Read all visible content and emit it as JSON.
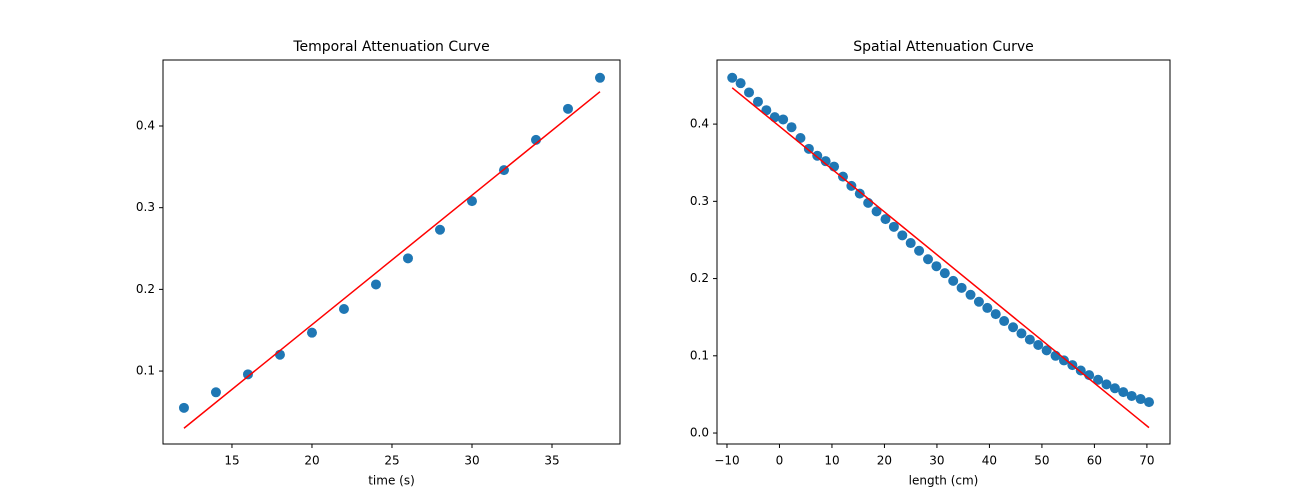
{
  "chart_data": [
    {
      "type": "scatter",
      "title": "Temporal Attenuation Curve",
      "xlabel": "time (s)",
      "xlim": [
        10.69,
        39.25
      ],
      "ylim": [
        0.0107,
        0.4808
      ],
      "xticks": [
        15,
        20,
        25,
        30,
        35
      ],
      "yticks": [
        0.1,
        0.2,
        0.3,
        0.4
      ],
      "series": [
        {
          "type": "scatter",
          "color": "#1f77b4",
          "x": [
            12,
            14,
            16,
            18,
            20,
            22,
            24,
            26,
            28,
            30,
            32,
            34,
            36,
            38
          ],
          "values": [
            0.055,
            0.074,
            0.096,
            0.12,
            0.147,
            0.176,
            0.206,
            0.238,
            0.273,
            0.308,
            0.346,
            0.383,
            0.421,
            0.459
          ]
        },
        {
          "type": "line",
          "color": "#ff0000",
          "x": [
            12,
            38
          ],
          "values": [
            0.03,
            0.442
          ]
        }
      ]
    },
    {
      "type": "scatter",
      "title": "Spatial Attenuation Curve",
      "xlabel": "length (cm)",
      "xlim": [
        -11.9,
        74.4
      ],
      "ylim": [
        -0.0142,
        0.483
      ],
      "xticks": [
        {
          "value": -10,
          "label": "−10"
        },
        0,
        10,
        20,
        30,
        40,
        50,
        60,
        70
      ],
      "yticks": [
        {
          "value": 0,
          "label": "0.0"
        },
        0.1,
        0.2,
        0.3,
        0.4
      ],
      "series": [
        {
          "type": "scatter",
          "color": "#1f77b4",
          "x": [
            -9,
            -7.4,
            -5.8,
            -4.1,
            -2.5,
            -0.9,
            0.7,
            2.3,
            4.0,
            5.6,
            7.2,
            8.8,
            10.4,
            12.1,
            13.7,
            15.3,
            16.9,
            18.5,
            20.2,
            21.8,
            23.4,
            25.0,
            26.6,
            28.3,
            29.9,
            31.5,
            33.1,
            34.7,
            36.4,
            38.0,
            39.6,
            41.2,
            42.8,
            44.5,
            46.1,
            47.7,
            49.3,
            50.9,
            52.6,
            54.2,
            55.8,
            57.4,
            59.0,
            60.7,
            62.3,
            63.9,
            65.5,
            67.1,
            68.8,
            70.4
          ],
          "values": [
            0.46,
            0.453,
            0.441,
            0.429,
            0.418,
            0.409,
            0.406,
            0.396,
            0.382,
            0.368,
            0.359,
            0.352,
            0.345,
            0.332,
            0.32,
            0.31,
            0.298,
            0.287,
            0.277,
            0.267,
            0.256,
            0.246,
            0.236,
            0.225,
            0.216,
            0.207,
            0.197,
            0.188,
            0.179,
            0.17,
            0.162,
            0.154,
            0.145,
            0.137,
            0.129,
            0.121,
            0.114,
            0.107,
            0.1,
            0.094,
            0.088,
            0.081,
            0.075,
            0.069,
            0.063,
            0.058,
            0.053,
            0.048,
            0.044,
            0.04
          ]
        },
        {
          "type": "line",
          "color": "#ff0000",
          "x": [
            -9,
            70.4
          ],
          "values": [
            0.447,
            0.007
          ]
        }
      ]
    }
  ]
}
